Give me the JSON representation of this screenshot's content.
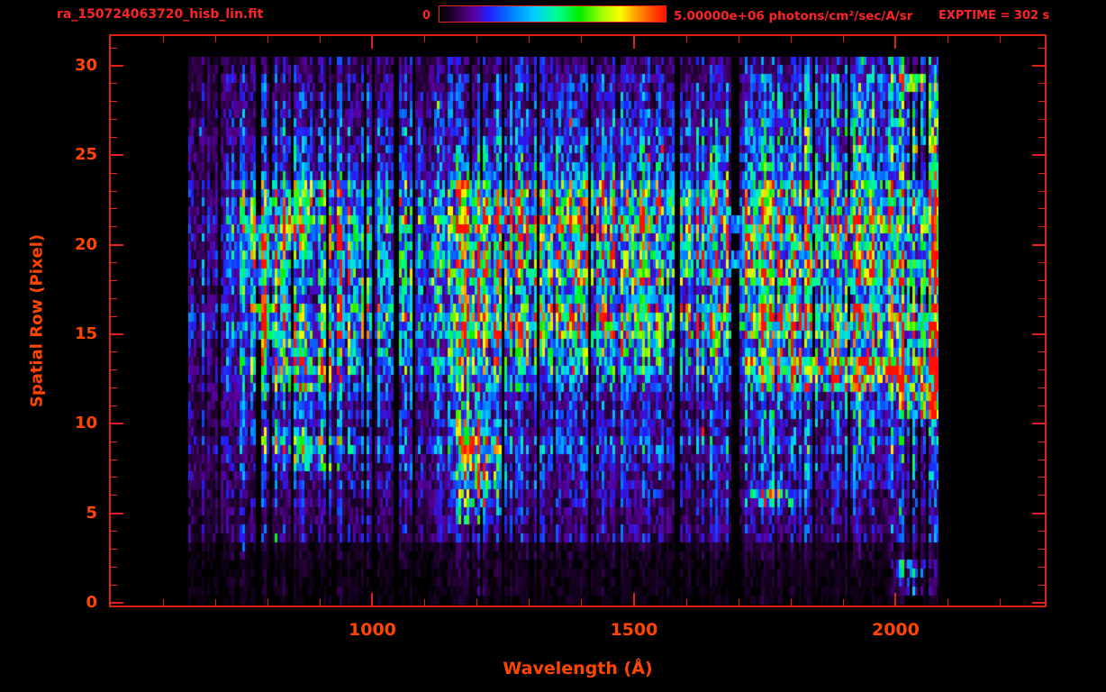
{
  "header": {
    "filename": "ra_150724063720_hisb_lin.fit",
    "exptime": "EXPTIME = 302 s"
  },
  "colorbar": {
    "min_label": "0",
    "max_label": "5.00000e+06 photons/cm²/sec/A/sr",
    "colormap": "rainbow",
    "gradient_stops": [
      [
        0.0,
        0,
        0,
        0
      ],
      [
        0.07,
        42,
        0,
        64
      ],
      [
        0.15,
        90,
        0,
        160
      ],
      [
        0.22,
        32,
        32,
        255
      ],
      [
        0.32,
        0,
        128,
        255
      ],
      [
        0.42,
        0,
        208,
        255
      ],
      [
        0.52,
        0,
        255,
        144
      ],
      [
        0.62,
        0,
        238,
        0
      ],
      [
        0.72,
        160,
        255,
        0
      ],
      [
        0.8,
        255,
        255,
        0
      ],
      [
        0.88,
        255,
        144,
        0
      ],
      [
        1.0,
        255,
        16,
        0
      ]
    ]
  },
  "colors": {
    "background": "#000000",
    "header_text": "#ff2424",
    "axis_line": "#e02218",
    "axis_text": "#ff4500"
  },
  "chart_data": {
    "type": "heatmap",
    "title": "ra_150724063720_hisb_lin.fit",
    "xlabel": "Wavelength (Å)",
    "ylabel": "Spatial Row (Pixel)",
    "x_ticks": [
      1000,
      1500,
      2000
    ],
    "y_ticks": [
      0,
      5,
      10,
      15,
      20,
      25,
      30
    ],
    "x_minor_step": 100,
    "y_minor_step": 1,
    "xlim": [
      500,
      2285
    ],
    "ylim": [
      -0.15,
      31.66
    ],
    "colorbar_range": [
      0,
      5000000
    ],
    "colorbar_units": "photons/cm²/sec/A/sr",
    "wavelength_range": [
      648,
      2082
    ],
    "row_range": [
      0,
      30
    ],
    "bin_lambda_start": 670,
    "bin_lambda_step": 40,
    "grid_rows": 31,
    "grid_cols": 36,
    "grid_note": "Approximate brightness (percent of colorbar max 5e6) per spatial row (index 0 = row 0, bottom) per 40 Å wavelength bin starting at 670 Å. Bright vertical feature near 1200 Å, bright streak rows 12-13 toward 2000-2070 Å, saturated column near 2050 Å.",
    "intensity_grid": [
      [
        2,
        2,
        2,
        2,
        2,
        2,
        2,
        3,
        2,
        3,
        2,
        2,
        3,
        4,
        3,
        2,
        2,
        2,
        3,
        2,
        2,
        2,
        2,
        3,
        2,
        2,
        2,
        3,
        2,
        2,
        3,
        2,
        2,
        3,
        4,
        3
      ],
      [
        2,
        2,
        3,
        2,
        3,
        2,
        2,
        3,
        2,
        2,
        3,
        2,
        3,
        6,
        4,
        3,
        2,
        3,
        2,
        3,
        2,
        2,
        3,
        2,
        3,
        2,
        3,
        2,
        3,
        2,
        3,
        3,
        2,
        4,
        25,
        5
      ],
      [
        3,
        3,
        3,
        4,
        3,
        4,
        3,
        3,
        4,
        3,
        4,
        3,
        4,
        8,
        5,
        4,
        3,
        4,
        3,
        4,
        3,
        4,
        3,
        4,
        3,
        4,
        4,
        3,
        4,
        4,
        4,
        5,
        4,
        5,
        55,
        8
      ],
      [
        4,
        4,
        5,
        5,
        5,
        5,
        4,
        5,
        4,
        5,
        5,
        4,
        5,
        10,
        6,
        5,
        5,
        5,
        4,
        5,
        5,
        5,
        5,
        4,
        5,
        5,
        5,
        6,
        5,
        6,
        6,
        6,
        6,
        7,
        10,
        6
      ],
      [
        6,
        7,
        9,
        10,
        10,
        10,
        9,
        9,
        9,
        10,
        9,
        9,
        10,
        16,
        12,
        10,
        9,
        10,
        9,
        10,
        9,
        10,
        10,
        9,
        10,
        10,
        10,
        11,
        10,
        11,
        11,
        12,
        12,
        13,
        15,
        12
      ],
      [
        8,
        9,
        12,
        13,
        13,
        13,
        12,
        12,
        12,
        13,
        12,
        12,
        14,
        55,
        30,
        14,
        13,
        13,
        12,
        13,
        12,
        13,
        13,
        12,
        13,
        13,
        13,
        14,
        14,
        15,
        15,
        16,
        16,
        17,
        20,
        16
      ],
      [
        9,
        10,
        14,
        15,
        15,
        15,
        14,
        14,
        14,
        15,
        14,
        14,
        16,
        70,
        38,
        16,
        15,
        15,
        14,
        15,
        14,
        15,
        15,
        14,
        15,
        16,
        18,
        50,
        48,
        20,
        17,
        18,
        18,
        19,
        24,
        18
      ],
      [
        10,
        11,
        15,
        17,
        18,
        17,
        16,
        15,
        15,
        16,
        15,
        15,
        17,
        85,
        42,
        17,
        16,
        16,
        15,
        16,
        15,
        16,
        16,
        15,
        16,
        16,
        17,
        20,
        19,
        18,
        18,
        19,
        20,
        21,
        27,
        20
      ],
      [
        10,
        12,
        16,
        20,
        35,
        40,
        36,
        18,
        16,
        17,
        16,
        16,
        18,
        95,
        45,
        18,
        17,
        17,
        16,
        17,
        16,
        17,
        17,
        16,
        17,
        17,
        18,
        19,
        19,
        19,
        19,
        20,
        21,
        22,
        29,
        21
      ],
      [
        11,
        12,
        17,
        22,
        40,
        45,
        40,
        20,
        17,
        18,
        17,
        17,
        19,
        95,
        46,
        19,
        18,
        17,
        17,
        18,
        17,
        18,
        17,
        17,
        18,
        18,
        19,
        20,
        20,
        20,
        20,
        21,
        22,
        23,
        30,
        22
      ],
      [
        11,
        13,
        18,
        30,
        35,
        35,
        32,
        20,
        18,
        19,
        18,
        18,
        20,
        80,
        44,
        20,
        18,
        18,
        18,
        19,
        18,
        19,
        18,
        18,
        19,
        19,
        20,
        22,
        22,
        24,
        28,
        28,
        28,
        28,
        34,
        26
      ],
      [
        12,
        13,
        19,
        26,
        28,
        28,
        26,
        20,
        19,
        20,
        19,
        19,
        21,
        65,
        40,
        21,
        19,
        19,
        19,
        20,
        19,
        20,
        19,
        19,
        20,
        20,
        22,
        26,
        26,
        28,
        30,
        32,
        34,
        38,
        75,
        90
      ],
      [
        12,
        14,
        22,
        45,
        50,
        48,
        45,
        30,
        22,
        22,
        21,
        21,
        23,
        60,
        40,
        26,
        24,
        24,
        23,
        24,
        23,
        24,
        23,
        23,
        24,
        26,
        30,
        40,
        45,
        52,
        58,
        65,
        72,
        78,
        85,
        88
      ],
      [
        13,
        15,
        24,
        50,
        55,
        52,
        50,
        35,
        26,
        26,
        25,
        25,
        27,
        65,
        45,
        32,
        30,
        30,
        30,
        32,
        30,
        32,
        30,
        30,
        32,
        36,
        45,
        55,
        60,
        68,
        74,
        82,
        90,
        96,
        98,
        100
      ],
      [
        13,
        15,
        26,
        48,
        52,
        50,
        46,
        34,
        28,
        30,
        28,
        28,
        30,
        70,
        46,
        38,
        36,
        36,
        35,
        38,
        36,
        38,
        36,
        35,
        36,
        38,
        40,
        42,
        44,
        46,
        46,
        48,
        50,
        52,
        55,
        58
      ],
      [
        14,
        16,
        28,
        58,
        50,
        40,
        38,
        40,
        30,
        32,
        30,
        30,
        32,
        70,
        48,
        44,
        42,
        44,
        42,
        45,
        42,
        44,
        42,
        42,
        44,
        45,
        46,
        46,
        46,
        48,
        48,
        50,
        52,
        54,
        56,
        58
      ],
      [
        14,
        16,
        28,
        62,
        45,
        30,
        35,
        45,
        30,
        32,
        30,
        30,
        32,
        72,
        48,
        42,
        40,
        42,
        40,
        44,
        40,
        42,
        40,
        40,
        42,
        44,
        44,
        45,
        45,
        46,
        46,
        48,
        50,
        52,
        55,
        56
      ],
      [
        13,
        15,
        26,
        55,
        38,
        26,
        30,
        42,
        28,
        30,
        28,
        28,
        30,
        68,
        45,
        36,
        34,
        35,
        34,
        36,
        34,
        36,
        34,
        34,
        35,
        36,
        38,
        38,
        38,
        40,
        40,
        42,
        44,
        46,
        48,
        50
      ],
      [
        14,
        16,
        28,
        58,
        42,
        28,
        32,
        48,
        30,
        32,
        30,
        30,
        33,
        75,
        50,
        46,
        44,
        46,
        44,
        48,
        44,
        46,
        44,
        44,
        46,
        48,
        50,
        50,
        50,
        52,
        52,
        54,
        55,
        56,
        58,
        58
      ],
      [
        15,
        17,
        30,
        60,
        46,
        30,
        34,
        50,
        32,
        34,
        32,
        32,
        35,
        80,
        52,
        48,
        46,
        48,
        46,
        50,
        46,
        50,
        46,
        46,
        48,
        50,
        52,
        52,
        52,
        54,
        54,
        56,
        58,
        60,
        62,
        60
      ],
      [
        14,
        16,
        30,
        68,
        60,
        40,
        34,
        44,
        32,
        33,
        31,
        31,
        34,
        75,
        50,
        44,
        42,
        44,
        42,
        46,
        42,
        45,
        42,
        42,
        44,
        46,
        47,
        47,
        47,
        48,
        50,
        52,
        54,
        55,
        58,
        56
      ],
      [
        15,
        17,
        32,
        60,
        74,
        68,
        50,
        40,
        33,
        34,
        32,
        32,
        35,
        85,
        55,
        48,
        45,
        48,
        45,
        50,
        46,
        48,
        46,
        45,
        48,
        50,
        51,
        51,
        51,
        52,
        54,
        58,
        60,
        62,
        64,
        60
      ],
      [
        14,
        16,
        30,
        50,
        66,
        62,
        48,
        38,
        32,
        33,
        31,
        31,
        34,
        85,
        55,
        46,
        44,
        46,
        44,
        48,
        44,
        46,
        44,
        44,
        46,
        48,
        49,
        49,
        49,
        50,
        52,
        55,
        57,
        58,
        60,
        58
      ],
      [
        13,
        15,
        26,
        38,
        46,
        45,
        42,
        34,
        28,
        30,
        28,
        28,
        31,
        75,
        48,
        40,
        38,
        40,
        38,
        42,
        38,
        40,
        38,
        38,
        40,
        42,
        43,
        43,
        43,
        44,
        46,
        48,
        50,
        52,
        54,
        52
      ],
      [
        11,
        13,
        20,
        26,
        30,
        30,
        28,
        24,
        22,
        23,
        22,
        22,
        24,
        45,
        34,
        30,
        28,
        30,
        28,
        30,
        28,
        30,
        28,
        28,
        30,
        32,
        33,
        34,
        34,
        36,
        36,
        38,
        40,
        42,
        44,
        42
      ],
      [
        10,
        12,
        16,
        20,
        22,
        22,
        21,
        19,
        18,
        19,
        18,
        18,
        20,
        26,
        24,
        24,
        23,
        24,
        23,
        24,
        23,
        24,
        23,
        23,
        24,
        26,
        27,
        28,
        28,
        30,
        30,
        32,
        34,
        36,
        38,
        36
      ],
      [
        9,
        11,
        14,
        17,
        18,
        18,
        17,
        16,
        16,
        17,
        16,
        16,
        17,
        20,
        19,
        20,
        19,
        20,
        19,
        20,
        19,
        20,
        19,
        19,
        20,
        22,
        23,
        24,
        24,
        26,
        28,
        30,
        32,
        33,
        35,
        32
      ],
      [
        8,
        10,
        12,
        14,
        15,
        15,
        14,
        14,
        13,
        14,
        13,
        13,
        14,
        16,
        15,
        16,
        15,
        16,
        15,
        16,
        15,
        16,
        15,
        15,
        16,
        18,
        19,
        20,
        20,
        22,
        24,
        26,
        28,
        29,
        30,
        28
      ],
      [
        7,
        9,
        11,
        12,
        13,
        13,
        12,
        12,
        12,
        12,
        12,
        12,
        13,
        14,
        13,
        14,
        13,
        14,
        13,
        14,
        13,
        14,
        13,
        13,
        14,
        15,
        16,
        17,
        17,
        19,
        21,
        24,
        26,
        27,
        28,
        26
      ],
      [
        6,
        8,
        10,
        11,
        12,
        12,
        11,
        11,
        10,
        11,
        10,
        10,
        11,
        13,
        12,
        12,
        12,
        12,
        12,
        12,
        12,
        12,
        12,
        11,
        12,
        13,
        14,
        15,
        15,
        17,
        19,
        22,
        24,
        25,
        70,
        26
      ],
      [
        6,
        7,
        9,
        10,
        11,
        11,
        10,
        10,
        10,
        10,
        10,
        10,
        11,
        12,
        11,
        12,
        11,
        12,
        11,
        12,
        11,
        12,
        11,
        11,
        12,
        12,
        13,
        14,
        14,
        16,
        18,
        20,
        22,
        23,
        25,
        22
      ]
    ]
  }
}
